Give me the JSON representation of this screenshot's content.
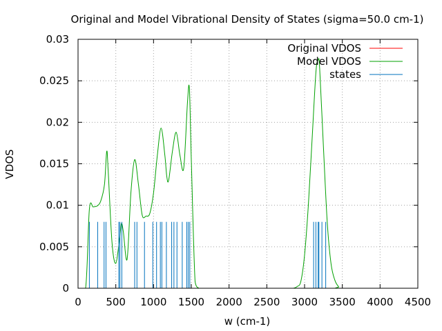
{
  "chart_data": {
    "type": "line",
    "title": "Original and Model Vibrational Density of States (sigma=50.0 cm-1)",
    "xlabel": "w (cm-1)",
    "ylabel": "VDOS",
    "xlim": [
      0,
      4500
    ],
    "ylim": [
      0,
      0.03
    ],
    "x_ticks": [
      "0",
      "500",
      "1000",
      "1500",
      "2000",
      "2500",
      "3000",
      "3500",
      "4000",
      "4500"
    ],
    "y_ticks": [
      "0",
      "0.005",
      "0.01",
      "0.015",
      "0.02",
      "0.025",
      "0.03"
    ],
    "grid": true,
    "legend_position": "top-right",
    "series": [
      {
        "name": "Original VDOS",
        "color": "#ff0000",
        "style": "line",
        "x": [],
        "y": []
      },
      {
        "name": "Model VDOS",
        "color": "#00a000",
        "style": "line",
        "x": [
          0,
          100,
          150,
          200,
          250,
          300,
          350,
          380,
          400,
          450,
          500,
          550,
          575,
          600,
          650,
          700,
          750,
          800,
          850,
          900,
          950,
          1000,
          1050,
          1100,
          1150,
          1175,
          1200,
          1250,
          1300,
          1350,
          1400,
          1450,
          1475,
          1500,
          1550,
          1600,
          1650,
          1700,
          1750,
          1800,
          2800,
          2850,
          2900,
          2950,
          3000,
          3050,
          3100,
          3150,
          3180,
          3200,
          3250,
          3300,
          3350,
          3400,
          3450,
          3500,
          4500
        ],
        "y": [
          0,
          0,
          0.0095,
          0.0098,
          0.0099,
          0.0105,
          0.0125,
          0.0165,
          0.014,
          0.0055,
          0.003,
          0.006,
          0.0078,
          0.0068,
          0.0035,
          0.0115,
          0.0155,
          0.0125,
          0.0088,
          0.0087,
          0.009,
          0.0115,
          0.016,
          0.0193,
          0.016,
          0.0135,
          0.013,
          0.0165,
          0.0188,
          0.016,
          0.0145,
          0.0225,
          0.024,
          0.0155,
          0.0008,
          0,
          0,
          0,
          0,
          0,
          0,
          0,
          0.0002,
          0.0008,
          0.004,
          0.01,
          0.018,
          0.026,
          0.0275,
          0.0265,
          0.017,
          0.008,
          0.003,
          0.001,
          0.0002,
          0,
          0
        ]
      },
      {
        "name": "states",
        "color": "#0072bd",
        "style": "impulses",
        "x": [
          150,
          260,
          345,
          370,
          540,
          555,
          580,
          750,
          780,
          880,
          990,
          1040,
          1090,
          1110,
          1170,
          1240,
          1270,
          1310,
          1380,
          1440,
          1460,
          1480,
          3120,
          3150,
          3180,
          3190,
          3230,
          3280
        ],
        "y": [
          0.008,
          0.008,
          0.008,
          0.008,
          0.008,
          0.008,
          0.008,
          0.008,
          0.008,
          0.008,
          0.008,
          0.008,
          0.008,
          0.008,
          0.008,
          0.008,
          0.008,
          0.008,
          0.008,
          0.008,
          0.008,
          0.008,
          0.008,
          0.008,
          0.008,
          0.008,
          0.008,
          0.008
        ]
      }
    ]
  }
}
